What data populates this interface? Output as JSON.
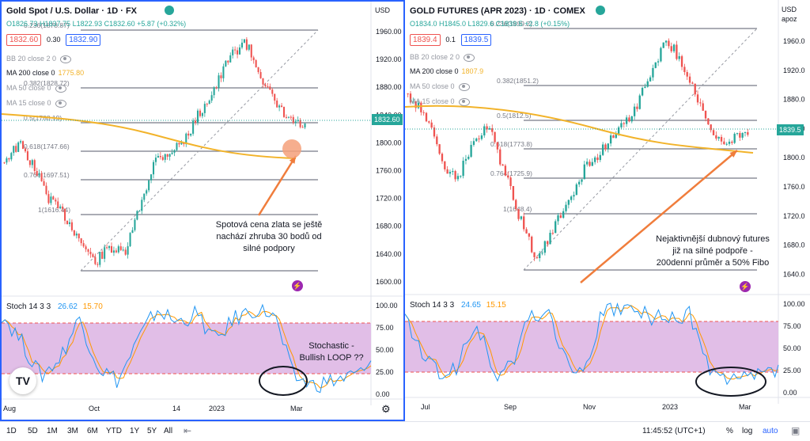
{
  "colors": {
    "up": "#26a69a",
    "down": "#ef5350",
    "ma200": "#f2b32a",
    "k": "#2196f3",
    "d": "#ff9800",
    "band": "#e1bee7",
    "fib": "#787b86",
    "arrow": "#f07d3c",
    "accent": "#2962ff"
  },
  "left": {
    "title": "Gold Spot / U.S. Dollar · 1D · FX",
    "ohlc": "O1826.73 H1837.75 L1822.93 C1832.60 +5.87 (+0.32%)",
    "bid": "1832.60",
    "spread": "0.30",
    "ask": "1832.90",
    "bb": "BB 20 close 2 0",
    "ma200": "MA 200 close 0",
    "ma200_val": "1775.80",
    "ma50": "MA 50 close 0",
    "ma15": "MA 15 close 0",
    "currency": "USD",
    "price_badge": "1832.60",
    "axis_labels": [
      "1960.00",
      "1920.00",
      "1880.00",
      "1840.00",
      "1800.00",
      "1760.00",
      "1720.00",
      "1680.00",
      "1640.00",
      "1600.00"
    ],
    "fib_labels": [
      "0.236(1878.87)",
      "0.382(1828.72)",
      "0.5(1788.19)",
      "0.618(1747.66)",
      "0.764(1697.51)",
      "1(1616.44)"
    ],
    "stoch_label": "Stoch 14 3 3",
    "stoch_k": "26.62",
    "stoch_d": "15.70",
    "stoch_axis": [
      "100.00",
      "75.00",
      "50.00",
      "25.00",
      "0.00"
    ],
    "time_axis": [
      "Aug",
      "Oct",
      "14",
      "2023",
      "Mar"
    ],
    "annotation": [
      "Spotová cena zlata se ještě",
      "nachází zhruba 30 bodů od",
      "silné podpory"
    ],
    "stoch_annotation": [
      "Stochastic -",
      "Bullish LOOP ??"
    ]
  },
  "right": {
    "title": "GOLD FUTURES (APR 2023) · 1D · COMEX",
    "ohlc": "O1834.0 H1845.0 L1829.6 C1839.5 +2.8 (+0.15%)",
    "bid": "1839.4",
    "spread": "0.1",
    "ask": "1839.5",
    "bb": "BB 20 close 2 0",
    "ma200": "MA 200 close 0",
    "ma200_val": "1807.9",
    "ma50": "MA 50 close 0",
    "ma15": "MA 15 close 0",
    "currency": "USD",
    "currency_sub": "apoz",
    "price_badge": "1839.5",
    "axis_labels": [
      "1960.0",
      "1920.0",
      "1880.0",
      "1840.0",
      "1800.0",
      "1760.0",
      "1720.0",
      "1680.0",
      "1640.0"
    ],
    "fib_labels": [
      "0.236(1899.2)",
      "0.382(1851.2)",
      "0.5(1812.5)",
      "0.618(1773.8)",
      "0.764(1725.9)",
      "1(1648.4)"
    ],
    "stoch_label": "Stoch 14 3 3",
    "stoch_k": "24.65",
    "stoch_d": "15.15",
    "stoch_axis": [
      "100.00",
      "75.00",
      "50.00",
      "25.00",
      "0.00"
    ],
    "time_axis": [
      "Jul",
      "Sep",
      "Nov",
      "2023",
      "Mar"
    ],
    "annotation": [
      "Nejaktivnější dubnový futures",
      "již na silné podpoře -",
      "200denní průměr a 50% Fibo"
    ]
  },
  "statusbar": {
    "ranges": [
      "1D",
      "5D",
      "1M",
      "3M",
      "6M",
      "YTD",
      "1Y",
      "5Y",
      "All"
    ],
    "time": "11:45:52 (UTC+1)",
    "pct": "%",
    "log": "log",
    "auto": "auto"
  },
  "logo": "TV"
}
